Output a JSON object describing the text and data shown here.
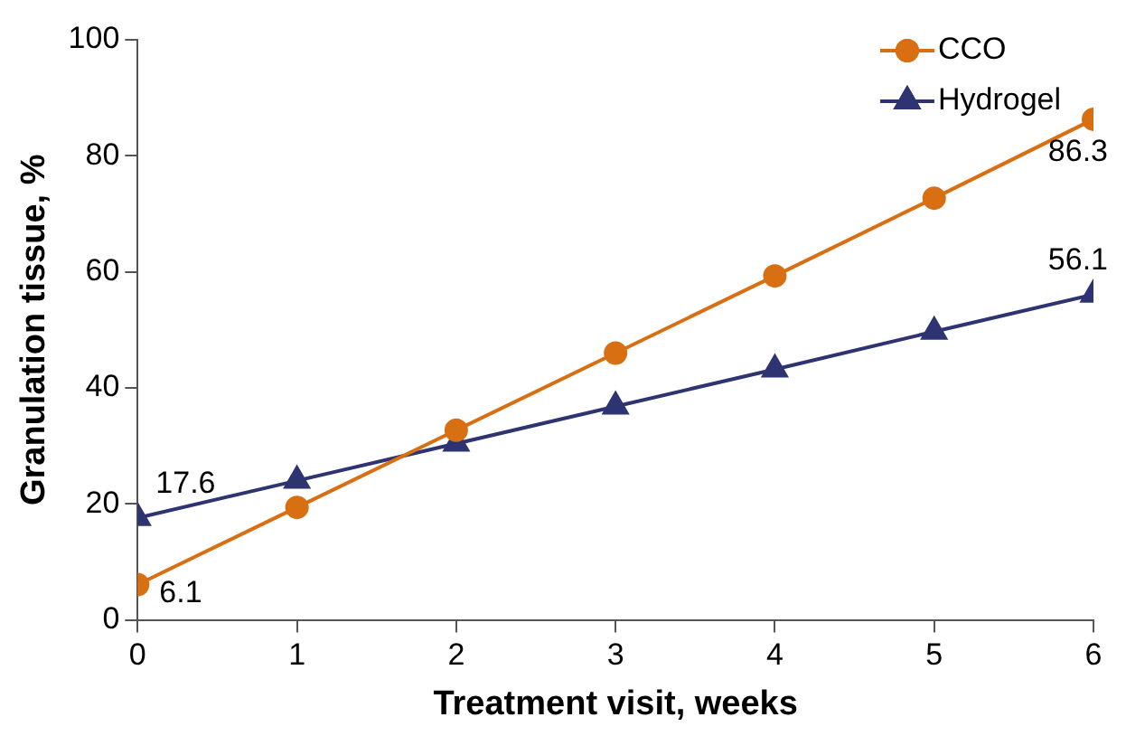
{
  "chart_data": {
    "type": "line",
    "xlabel": "Treatment visit, weeks",
    "ylabel": "Granulation tissue, %",
    "x": [
      0,
      1,
      2,
      3,
      4,
      5,
      6
    ],
    "xlim": [
      0,
      6
    ],
    "xticks": [
      0,
      1,
      2,
      3,
      4,
      5,
      6
    ],
    "ylim": [
      0,
      100
    ],
    "yticks": [
      0,
      20,
      40,
      60,
      80,
      100
    ],
    "grid": false,
    "legend": "top right",
    "series": [
      {
        "name": "CCO",
        "color": "#d86f12",
        "marker": "circle",
        "values": [
          6.1,
          19.4,
          32.7,
          46.0,
          59.3,
          72.7,
          86.3
        ],
        "value_labels": [
          "6.1",
          null,
          null,
          null,
          null,
          null,
          "86.3"
        ]
      },
      {
        "name": "Hydrogel",
        "color": "#2e3471",
        "marker": "triangle",
        "values": [
          17.6,
          24.0,
          30.4,
          36.8,
          43.2,
          49.7,
          56.1
        ],
        "value_labels": [
          "17.6",
          null,
          null,
          null,
          null,
          null,
          "56.1"
        ]
      }
    ]
  }
}
